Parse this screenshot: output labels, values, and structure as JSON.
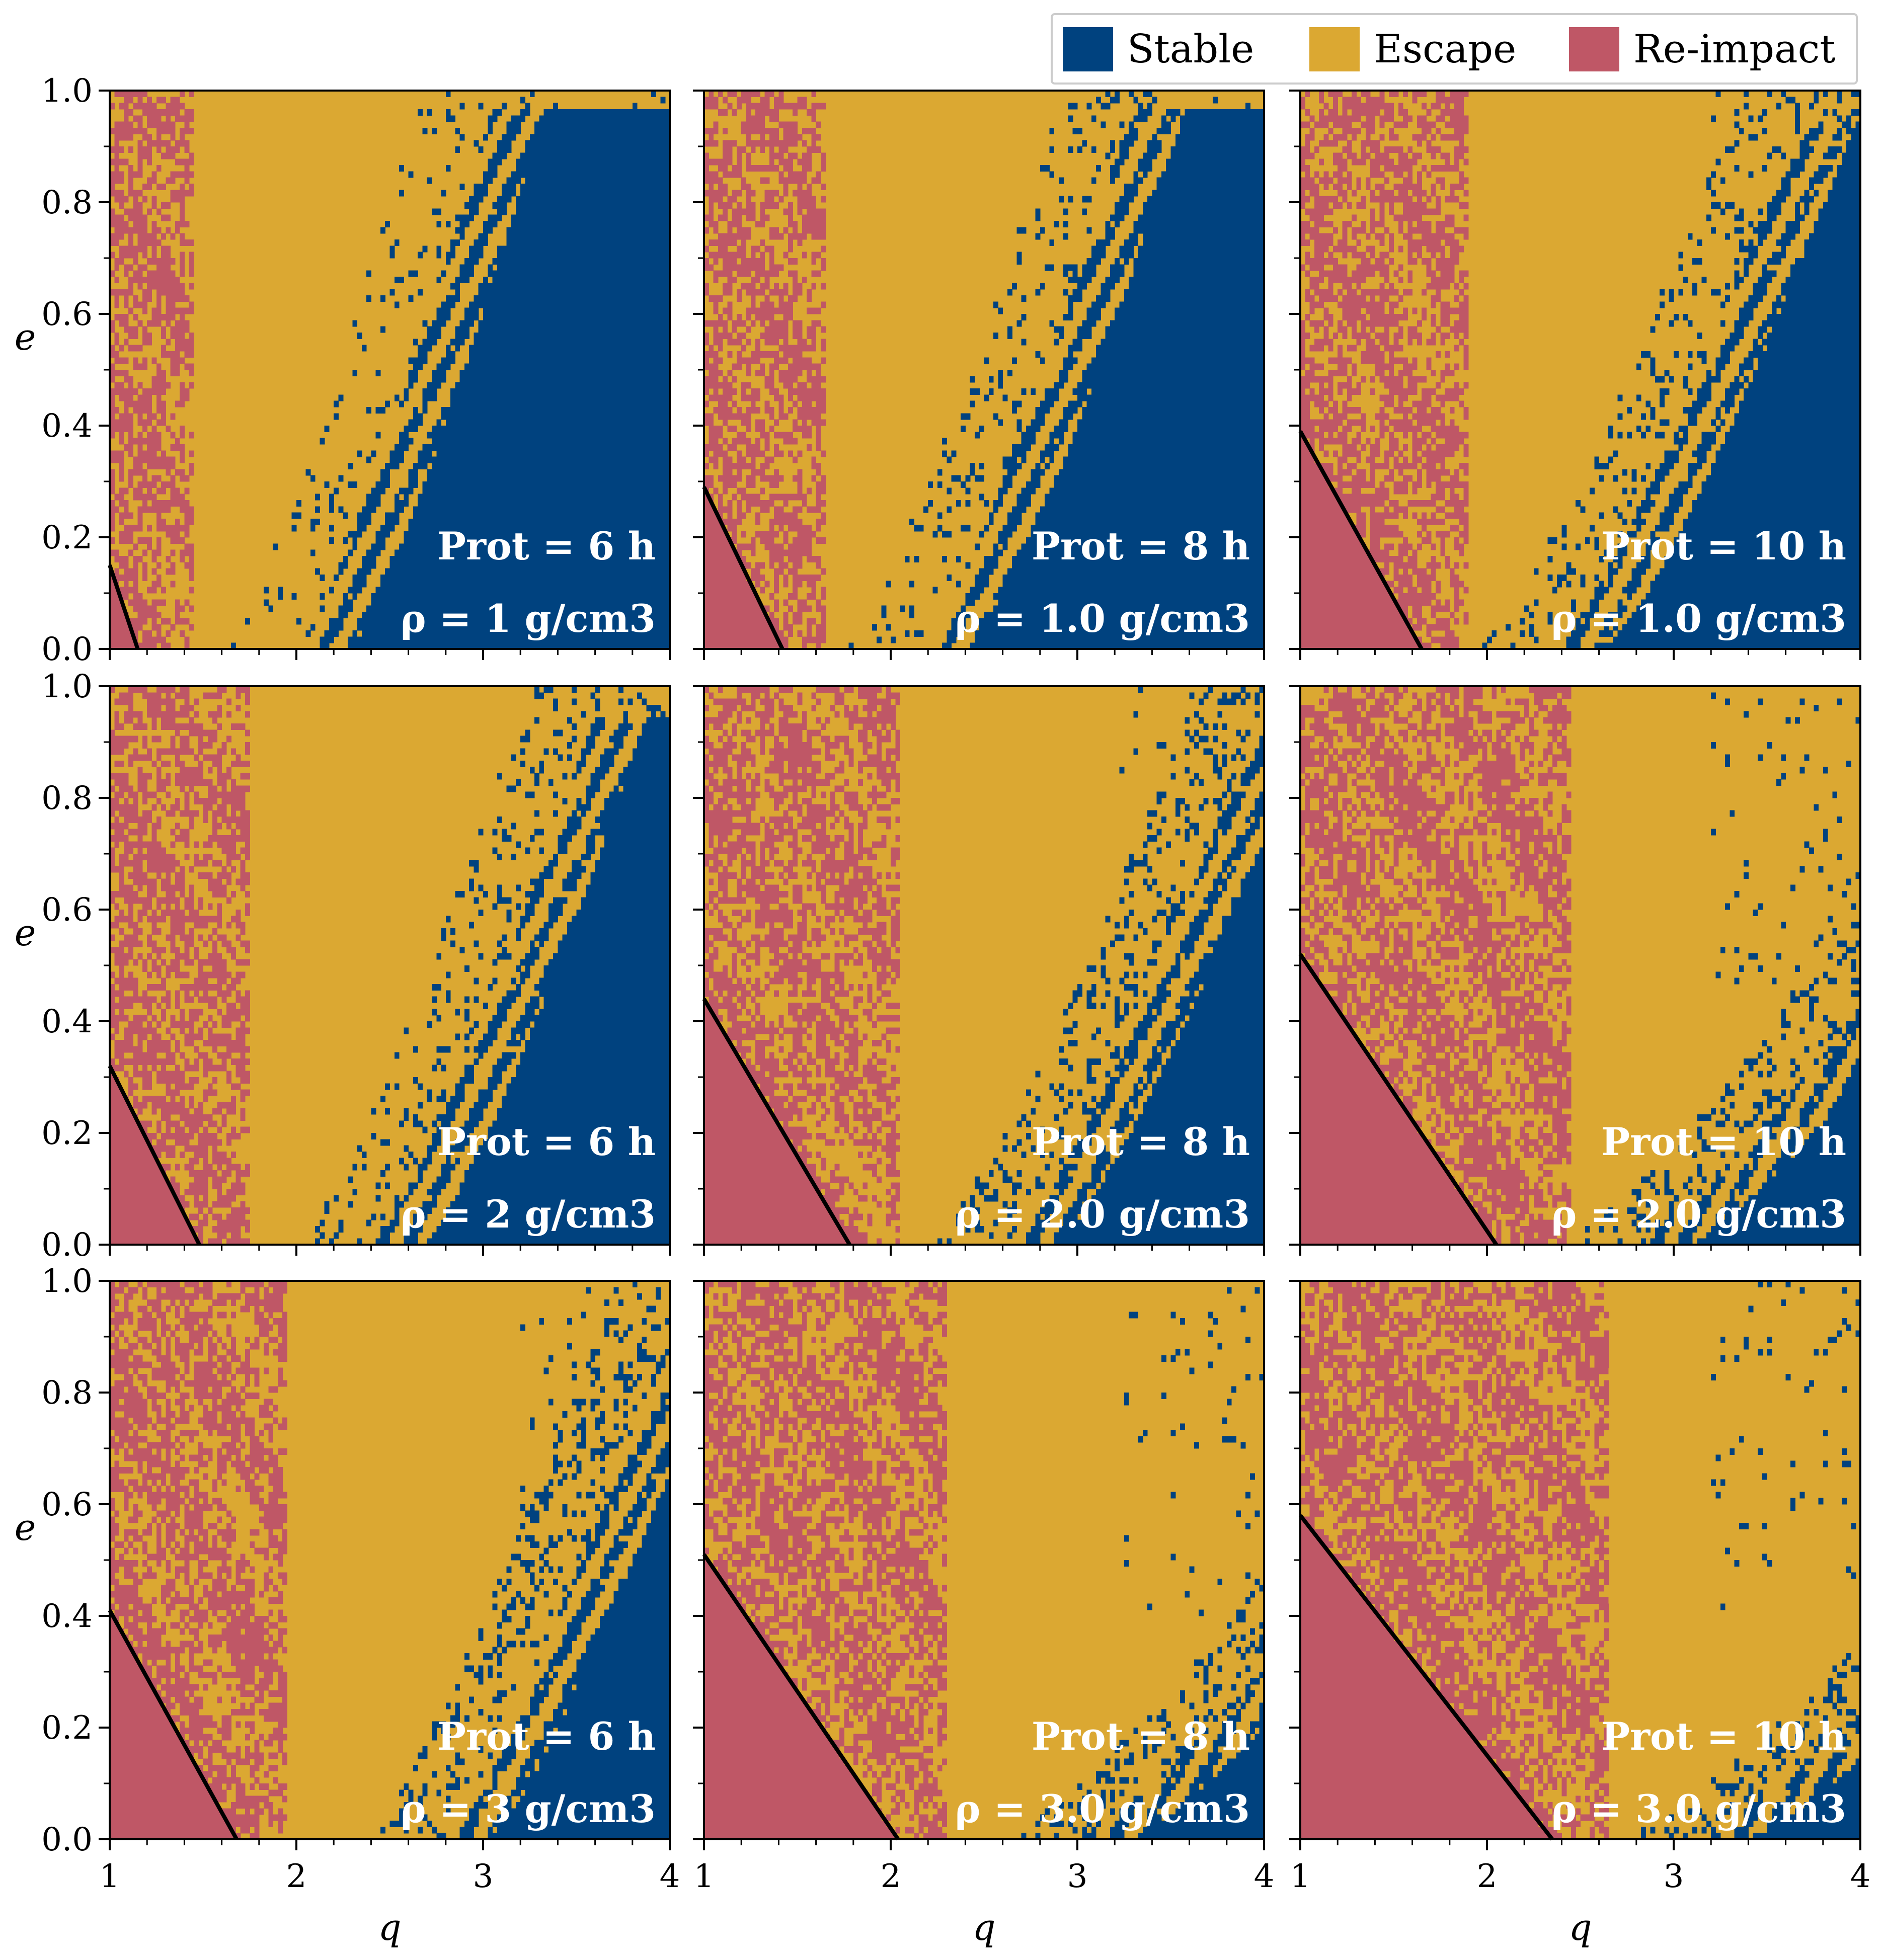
{
  "colors": {
    "stable": "#00427f",
    "escape": "#dba832",
    "reimpact": "#bf5766",
    "boundary_line": "#000000"
  },
  "legend": [
    {
      "name": "Stable",
      "color": "#00427f"
    },
    {
      "name": "Escape",
      "color": "#dba832"
    },
    {
      "name": "Re-impact",
      "color": "#bf5766"
    }
  ],
  "axes": {
    "xlabel": "q",
    "ylabel": "e",
    "xticks": [
      "1",
      "2",
      "3",
      "4"
    ],
    "yticks": [
      "0.0",
      "0.2",
      "0.4",
      "0.6",
      "0.8",
      "1.0"
    ]
  },
  "chart_data": {
    "type": "heatmap",
    "layout": "3x3 grid of panels",
    "xlabel": "q",
    "ylabel": "e",
    "xlim": [
      1,
      4
    ],
    "ylim": [
      0,
      1
    ],
    "categories": [
      "Stable",
      "Escape",
      "Re-impact"
    ],
    "panels": [
      {
        "label_top": "Prot = 6 h",
        "label_bottom": "ρ = 1 g/cm3",
        "line": {
          "e_at_q1": 0.15,
          "q_at_e0": 1.15
        },
        "reimpact_edge_q": 1.45,
        "stable_edge_q0": 2.0,
        "stable_edge_q1": 3.05,
        "stable_top_e": 0.97,
        "speckle": 0.22
      },
      {
        "label_top": "Prot = 8 h",
        "label_bottom": "ρ = 1.0 g/cm3",
        "line": {
          "e_at_q1": 0.29,
          "q_at_e0": 1.42
        },
        "reimpact_edge_q": 1.65,
        "stable_edge_q0": 2.15,
        "stable_edge_q1": 3.3,
        "stable_top_e": 0.97,
        "speckle": 0.32
      },
      {
        "label_top": "Prot = 10 h",
        "label_bottom": "ρ = 1.0 g/cm3",
        "line": {
          "e_at_q1": 0.39,
          "q_at_e0": 1.65
        },
        "reimpact_edge_q": 1.9,
        "stable_edge_q0": 2.35,
        "stable_edge_q1": 3.7,
        "stable_top_e": 0.95,
        "speckle": 0.45
      },
      {
        "label_top": "Prot = 6 h",
        "label_bottom": "ρ = 2 g/cm3",
        "line": {
          "e_at_q1": 0.32,
          "q_at_e0": 1.48
        },
        "reimpact_edge_q": 1.75,
        "stable_edge_q0": 2.4,
        "stable_edge_q1": 3.6,
        "stable_top_e": 0.95,
        "speckle": 0.4
      },
      {
        "label_top": "Prot = 8 h",
        "label_bottom": "ρ = 2.0 g/cm3",
        "line": {
          "e_at_q1": 0.44,
          "q_at_e0": 1.78
        },
        "reimpact_edge_q": 2.05,
        "stable_edge_q0": 2.6,
        "stable_edge_q1": 4.0,
        "stable_top_e": 0.95,
        "speckle": 0.55
      },
      {
        "label_top": "Prot = 10 h",
        "label_bottom": "ρ = 2.0 g/cm3",
        "line": {
          "e_at_q1": 0.52,
          "q_at_e0": 2.05
        },
        "reimpact_edge_q": 2.45,
        "stable_edge_q0": 2.8,
        "stable_edge_q1": 4.4,
        "stable_top_e": 0.6,
        "speckle": 0.6
      },
      {
        "label_top": "Prot = 6 h",
        "label_bottom": "ρ = 3 g/cm3",
        "line": {
          "e_at_q1": 0.41,
          "q_at_e0": 1.68
        },
        "reimpact_edge_q": 1.95,
        "stable_edge_q0": 2.75,
        "stable_edge_q1": 4.05,
        "stable_top_e": 0.95,
        "speckle": 0.5
      },
      {
        "label_top": "Prot = 8 h",
        "label_bottom": "ρ = 3.0 g/cm3",
        "line": {
          "e_at_q1": 0.51,
          "q_at_e0": 2.04
        },
        "reimpact_edge_q": 2.3,
        "stable_edge_q0": 3.0,
        "stable_edge_q1": 4.6,
        "stable_top_e": 0.55,
        "speckle": 0.6
      },
      {
        "label_top": "Prot = 10 h",
        "label_bottom": "ρ = 3.0 g/cm3",
        "line": {
          "e_at_q1": 0.58,
          "q_at_e0": 2.35
        },
        "reimpact_edge_q": 2.65,
        "stable_edge_q0": 3.1,
        "stable_edge_q1": 4.8,
        "stable_top_e": 0.5,
        "speckle": 0.62
      }
    ]
  }
}
